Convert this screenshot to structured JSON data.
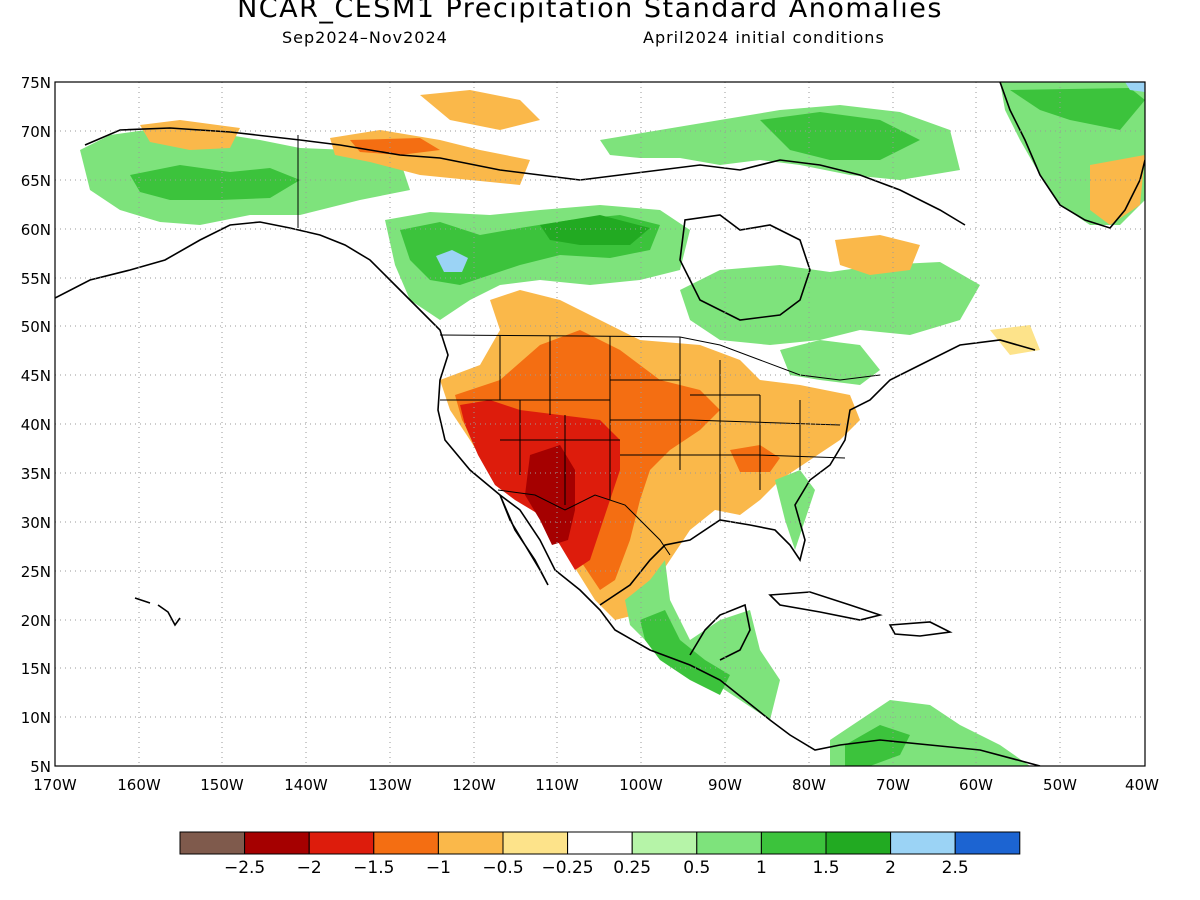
{
  "map": {
    "title": "NCAR_CESM1 Precipitation Standard Anomalies",
    "period": "Sep2024–Nov2024",
    "init": "April2024 initial conditions",
    "lat_labels": [
      "75N",
      "70N",
      "65N",
      "60N",
      "55N",
      "50N",
      "45N",
      "40N",
      "35N",
      "30N",
      "25N",
      "20N",
      "15N",
      "10N",
      "5N"
    ],
    "lon_labels": [
      "170W",
      "160W",
      "150W",
      "140W",
      "130W",
      "120W",
      "110W",
      "100W",
      "90W",
      "80W",
      "70W",
      "60W",
      "50W",
      "40W"
    ],
    "extent": {
      "lon": [
        -170,
        -40
      ],
      "lat": [
        5,
        75
      ]
    },
    "gridlines": "dotted"
  },
  "colorbar": {
    "colors": [
      "#7f5a4c",
      "#a50000",
      "#dd1c0c",
      "#f46e12",
      "#fab84a",
      "#fde38a",
      "#ffffff",
      "#b6f4a8",
      "#7ee37c",
      "#3cc33c",
      "#22aa22",
      "#9bd3f5",
      "#1c64d2"
    ],
    "labels": [
      "−2.5",
      "−2",
      "−1.5",
      "−1",
      "−0.5",
      "−0.25",
      "0.25",
      "0.5",
      "1",
      "1.5",
      "2",
      "2.5"
    ]
  },
  "anomaly_regions": [
    {
      "label": "southwest-us-mexico",
      "category": "-2 to -1.5"
    },
    {
      "label": "west-central-us",
      "category": "-1 to -0.5"
    },
    {
      "label": "canada-central",
      "category": "0.5 to 1.5"
    },
    {
      "label": "alaska",
      "category": "0.5 to 1"
    },
    {
      "label": "greenland",
      "category": "0.5 to 1.5"
    },
    {
      "label": "southern-mexico-central-america",
      "category": "0.5 to 1"
    },
    {
      "label": "bc-interior-maximum",
      "category": "2 to 2.5"
    }
  ]
}
